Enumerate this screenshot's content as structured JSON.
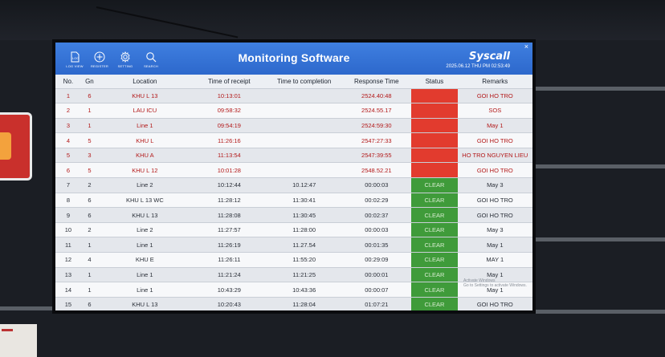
{
  "header": {
    "title": "Monitoring Software",
    "brand": "Syscall",
    "datetime": "2025.06.12 THU   PM 02:53:49",
    "close": "×",
    "toolbar": [
      {
        "id": "log-view",
        "label": "LOG VIEW",
        "icon": "document-icon"
      },
      {
        "id": "register",
        "label": "REGISTER",
        "icon": "plus-circle-icon"
      },
      {
        "id": "setting",
        "label": "SETTING",
        "icon": "gear-icon"
      },
      {
        "id": "search",
        "label": "SEARCH",
        "icon": "search-icon"
      }
    ]
  },
  "columns": [
    "No.",
    "Gn",
    "Location",
    "Time of receipt",
    "Time to completion",
    "Response Time",
    "Status",
    "Remarks"
  ],
  "rows": [
    {
      "no": "1",
      "gn": "6",
      "location": "KHU L 13",
      "receipt": "10:13:01",
      "completion": "",
      "response": "2524.40:48",
      "status": "",
      "remarks": "GOI HO TRO"
    },
    {
      "no": "2",
      "gn": "1",
      "location": "LAU ICU",
      "receipt": "09:58:32",
      "completion": "",
      "response": "2524.55.17",
      "status": "",
      "remarks": "SOS"
    },
    {
      "no": "3",
      "gn": "1",
      "location": "Line 1",
      "receipt": "09:54:19",
      "completion": "",
      "response": "2524:59:30",
      "status": "",
      "remarks": "May 1"
    },
    {
      "no": "4",
      "gn": "5",
      "location": "KHU L",
      "receipt": "11:26:16",
      "completion": "",
      "response": "2547:27:33",
      "status": "",
      "remarks": "GOI HO TRO"
    },
    {
      "no": "5",
      "gn": "3",
      "location": "KHU A",
      "receipt": "11:13:54",
      "completion": "",
      "response": "2547:39:55",
      "status": "",
      "remarks": "HO TRO NGUYEN LIEU"
    },
    {
      "no": "6",
      "gn": "5",
      "location": "KHU L 12",
      "receipt": "10:01:28",
      "completion": "",
      "response": "2548.52.21",
      "status": "",
      "remarks": "GOI HO TRO"
    },
    {
      "no": "7",
      "gn": "2",
      "location": "Line 2",
      "receipt": "10:12:44",
      "completion": "10.12:47",
      "response": "00:00:03",
      "status": "CLEAR",
      "remarks": "May 3"
    },
    {
      "no": "8",
      "gn": "6",
      "location": "KHU L 13 WC",
      "receipt": "11:28:12",
      "completion": "11:30:41",
      "response": "00:02:29",
      "status": "CLEAR",
      "remarks": "GOI HO TRO"
    },
    {
      "no": "9",
      "gn": "6",
      "location": "KHU L 13",
      "receipt": "11:28:08",
      "completion": "11:30:45",
      "response": "00:02:37",
      "status": "CLEAR",
      "remarks": "GOI HO TRO"
    },
    {
      "no": "10",
      "gn": "2",
      "location": "Line 2",
      "receipt": "11:27:57",
      "completion": "11:28:00",
      "response": "00:00:03",
      "status": "CLEAR",
      "remarks": "May 3"
    },
    {
      "no": "11",
      "gn": "1",
      "location": "Line 1",
      "receipt": "11:26:19",
      "completion": "11.27.54",
      "response": "00:01:35",
      "status": "CLEAR",
      "remarks": "May 1"
    },
    {
      "no": "12",
      "gn": "4",
      "location": "KHU E",
      "receipt": "11:26:11",
      "completion": "11:55:20",
      "response": "00:29:09",
      "status": "CLEAR",
      "remarks": "MAY 1"
    },
    {
      "no": "13",
      "gn": "1",
      "location": "Line 1",
      "receipt": "11:21:24",
      "completion": "11:21:25",
      "response": "00:00:01",
      "status": "CLEAR",
      "remarks": "May 1"
    },
    {
      "no": "14",
      "gn": "1",
      "location": "Line 1",
      "receipt": "10:43:29",
      "completion": "10:43:36",
      "response": "00:00:07",
      "status": "CLEAR",
      "remarks": "May 1"
    },
    {
      "no": "15",
      "gn": "6",
      "location": "KHU L 13",
      "receipt": "10:20:43",
      "completion": "11:28:04",
      "response": "01:07:21",
      "status": "CLEAR",
      "remarks": "GOI HO TRO"
    }
  ],
  "watermark": {
    "line1": "Activate Windows",
    "line2": "Go to Settings to activate Windows."
  },
  "colors": {
    "header": "#2d68cc",
    "alarm": "#e23b2e",
    "clear": "#3f9b3a",
    "alarm_text": "#b31919"
  }
}
